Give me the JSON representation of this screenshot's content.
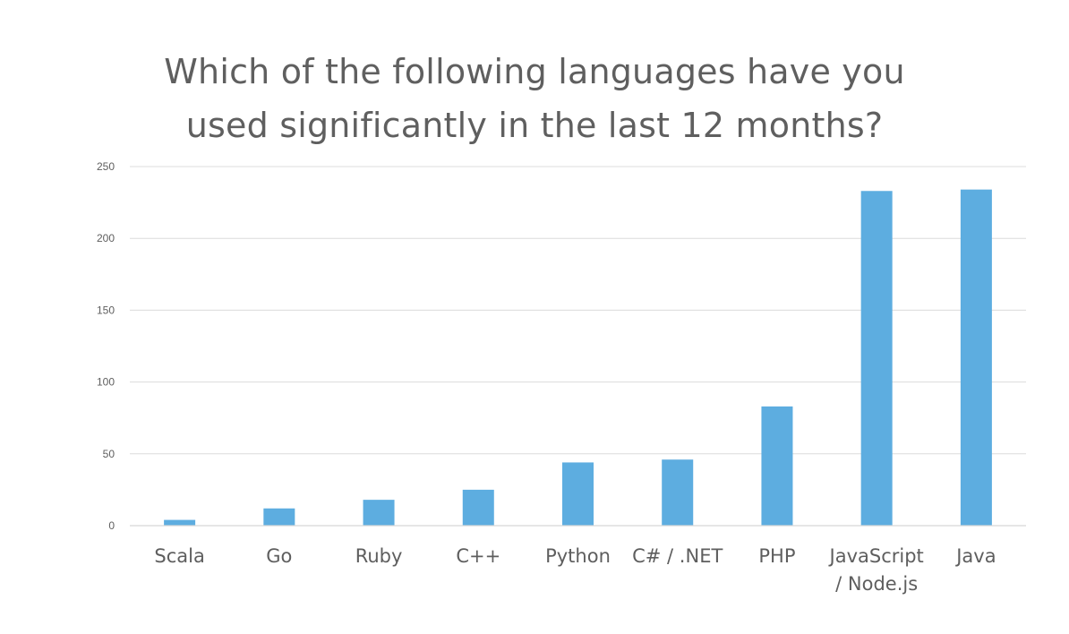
{
  "chart_data": {
    "type": "bar",
    "title": [
      "Which of the following languages have you",
      "used significantly in the last 12 months?"
    ],
    "categories": [
      [
        "Scala"
      ],
      [
        "Go"
      ],
      [
        "Ruby"
      ],
      [
        "C++"
      ],
      [
        "Python"
      ],
      [
        "C# / .NET"
      ],
      [
        "PHP"
      ],
      [
        "JavaScript",
        "/ Node.js"
      ],
      [
        "Java"
      ]
    ],
    "values": [
      4,
      12,
      18,
      25,
      44,
      46,
      83,
      233,
      234
    ],
    "ylim": [
      0,
      250
    ],
    "yticks": [
      0,
      50,
      100,
      150,
      200,
      250
    ],
    "grid": true,
    "legend": "none",
    "colors": {
      "bar": "#5dade0",
      "grid": "#dcdcdc",
      "axis": "#d6d6d6"
    }
  }
}
